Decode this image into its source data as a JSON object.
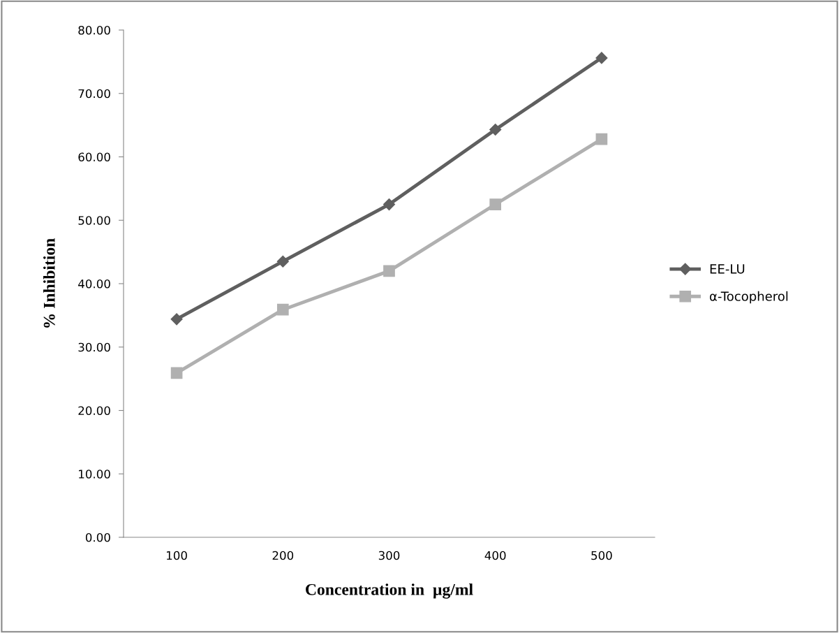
{
  "chart_data": {
    "type": "line",
    "xlabel": "Concentration in  µg/ml",
    "ylabel": "% Inhibition",
    "categories": [
      "100",
      "200",
      "300",
      "400",
      "500"
    ],
    "series": [
      {
        "name": "EE-LU",
        "color": "#5f5f5f",
        "marker": "diamond",
        "values": [
          34.4,
          43.5,
          52.5,
          64.3,
          75.6
        ]
      },
      {
        "name": "α-Tocopherol",
        "color": "#b0b0b0",
        "marker": "square",
        "values": [
          25.9,
          35.9,
          42.0,
          52.5,
          62.8
        ]
      }
    ],
    "ylim": [
      0,
      80
    ],
    "yticks": [
      {
        "value": 0,
        "label": "0.00"
      },
      {
        "value": 10,
        "label": "10.00"
      },
      {
        "value": 20,
        "label": "20.00"
      },
      {
        "value": 30,
        "label": "30.00"
      },
      {
        "value": 40,
        "label": "40.00"
      },
      {
        "value": 50,
        "label": "50.00"
      },
      {
        "value": 60,
        "label": "60.00"
      },
      {
        "value": 70,
        "label": "70.00"
      },
      {
        "value": 80,
        "label": "80.00"
      }
    ],
    "grid": false,
    "legend": "right",
    "line_style": "solid"
  }
}
